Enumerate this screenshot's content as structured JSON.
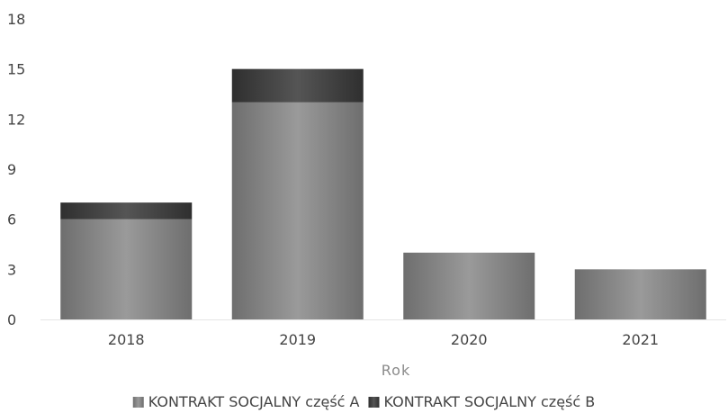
{
  "chart_data": {
    "type": "bar",
    "stacked": true,
    "title": "",
    "xlabel": "Rok",
    "ylabel": "",
    "categories": [
      "2018",
      "2019",
      "2020",
      "2021"
    ],
    "series": [
      {
        "name": "KONTRAKT SOCJALNY część A",
        "color": "#7f7f7f",
        "values": [
          6,
          13,
          4,
          3
        ]
      },
      {
        "name": "KONTRAKT SOCJALNY część B",
        "color": "#3f3f3f",
        "values": [
          1,
          2,
          0,
          0
        ]
      }
    ],
    "ylim": [
      0,
      18
    ],
    "yticks": [
      0,
      3,
      6,
      9,
      12,
      15,
      18
    ],
    "grid": false,
    "legend": "bottom"
  }
}
